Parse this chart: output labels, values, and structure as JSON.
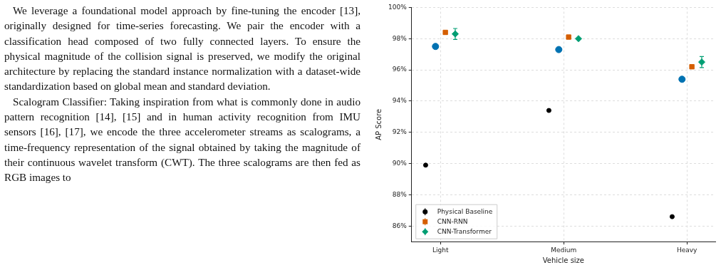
{
  "chart_data": {
    "type": "scatter",
    "xlabel": "Vehicle size",
    "ylabel": "AP Score",
    "categories": [
      "Light",
      "Medium",
      "Heavy"
    ],
    "ylim": [
      85,
      100
    ],
    "yticks": [
      {
        "value": 86,
        "label": "86%"
      },
      {
        "value": 88,
        "label": "88%"
      },
      {
        "value": 90,
        "label": "90%"
      },
      {
        "value": 92,
        "label": "92%"
      },
      {
        "value": 94,
        "label": "94%"
      },
      {
        "value": 96,
        "label": "96%"
      },
      {
        "value": 98,
        "label": "98%"
      },
      {
        "value": 100,
        "label": "100%"
      }
    ],
    "grid": true,
    "legend": "bottom left",
    "series": [
      {
        "name": "Physical Baseline",
        "color": "#000000",
        "marker": "circle",
        "values": [
          89.9,
          93.4,
          86.6
        ]
      },
      {
        "color": "#0072b2",
        "marker": "circle",
        "values": [
          97.5,
          97.3,
          95.4
        ]
      },
      {
        "name": "CNN-RNN",
        "color": "#d55e00",
        "marker": "square",
        "values": [
          98.4,
          98.1,
          96.2
        ]
      },
      {
        "name": "CNN-Transformer",
        "color": "#009e73",
        "marker": "diamond",
        "values": [
          98.3,
          98.0,
          96.5
        ],
        "errors": [
          0.35,
          null,
          0.35
        ]
      }
    ],
    "annotations": [
      "We leverage a foundational model approach by fine-tuning the encoder [13], originally designed for time-series forecasting. We pair the encoder with a classification head composed of two fully connected layers. To ensure the physical magnitude of the collision signal is preserved, we modify the original architecture by replacing the standard instance normalization with a dataset-wide standardization based on global mean and standard deviation.",
      "Scalogram Classifier: Taking inspiration from what is commonly done in audio pattern recognition [14], [15] and in human activity recognition from IMU sensors [16], [17], we encode the three accelerometer streams as scalograms, a time-frequency representation of the signal obtained by taking the magnitude of their continuous wavelet transform (CWT). The three scalograms are then fed as RGB images to"
    ]
  }
}
